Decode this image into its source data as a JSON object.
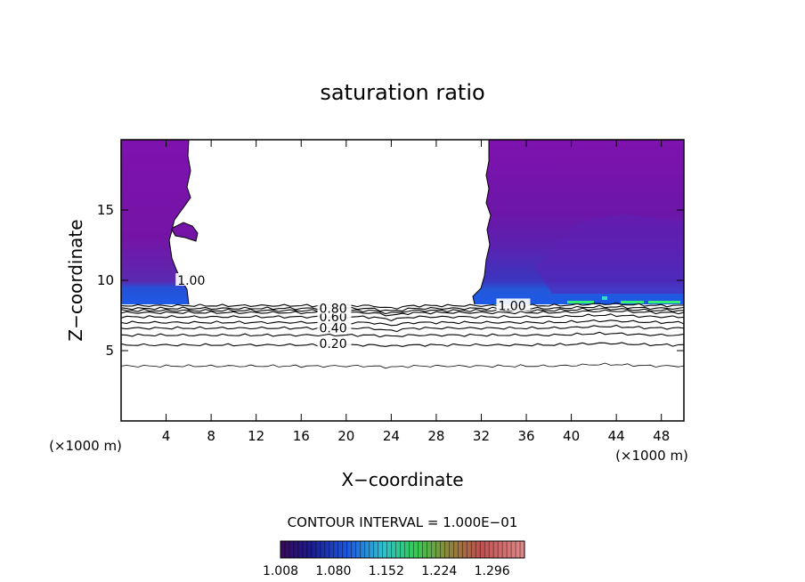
{
  "chart_data": {
    "type": "contour",
    "title": "saturation ratio",
    "xlabel": "X−coordinate",
    "ylabel": "Z−coordinate",
    "x_unit_left": "(×1000 m)",
    "x_unit_right": "(×1000 m)",
    "xlim": [
      0,
      50
    ],
    "ylim": [
      0,
      20
    ],
    "xticks": [
      4,
      8,
      12,
      16,
      20,
      24,
      28,
      32,
      36,
      40,
      44,
      48
    ],
    "yticks": [
      5,
      10,
      15
    ],
    "contour_levels": [
      0.1,
      0.2,
      0.3,
      0.4,
      0.5,
      0.6,
      0.7,
      0.8,
      0.9,
      1.0
    ],
    "contour_heights_z": [
      3.9,
      5.4,
      6.1,
      6.6,
      7.0,
      7.4,
      7.7,
      7.85,
      8.0,
      8.2
    ],
    "contour_labels": [
      {
        "text": "0.20",
        "x": 17.6,
        "z": 5.5
      },
      {
        "text": "0.40",
        "x": 17.6,
        "z": 6.6
      },
      {
        "text": "0.60",
        "x": 17.6,
        "z": 7.4
      },
      {
        "text": "0.80",
        "x": 17.6,
        "z": 8.0
      },
      {
        "text": "1.00",
        "x": 33.5,
        "z": 8.2
      },
      {
        "text": "1.00",
        "x": 5.0,
        "z": 10.0
      }
    ],
    "contour_interval_text": "CONTOUR INTERVAL = 1.000E−01",
    "colorbar": {
      "min": 1.008,
      "max": 1.34,
      "tick_labels": [
        "1.008",
        "1.080",
        "1.152",
        "1.224",
        "1.296"
      ],
      "tick_values": [
        1.008,
        1.08,
        1.152,
        1.224,
        1.296
      ]
    },
    "supersaturated_regions": [
      {
        "x_range": [
          0,
          6
        ],
        "z_range": [
          8.2,
          20
        ]
      },
      {
        "x_range": [
          31.5,
          50
        ],
        "z_range": [
          8.2,
          20
        ]
      }
    ],
    "grid": false
  }
}
